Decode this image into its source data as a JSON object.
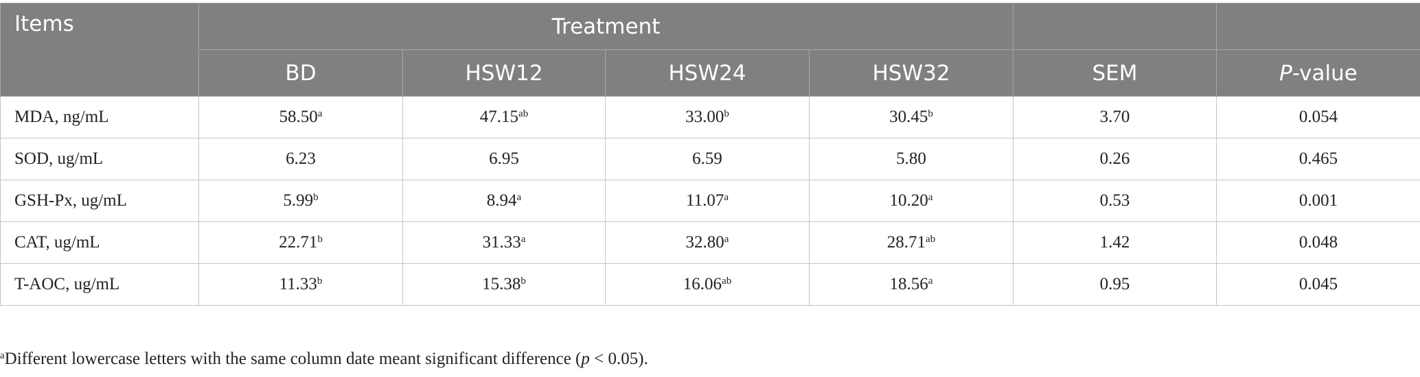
{
  "table": {
    "header": {
      "items": "Items",
      "treatment": "Treatment",
      "columns": [
        "BD",
        "HSW12",
        "HSW24",
        "HSW32"
      ],
      "sem": "SEM",
      "p_value": {
        "italic": "P",
        "text": "-value"
      }
    },
    "rows": [
      {
        "item": "MDA, ng/mL",
        "cells": [
          {
            "value": "58.50",
            "sup": "a"
          },
          {
            "value": "47.15",
            "sup": "ab"
          },
          {
            "value": "33.00",
            "sup": "b"
          },
          {
            "value": "30.45",
            "sup": "b"
          }
        ],
        "sem": "3.70",
        "p": "0.054"
      },
      {
        "item": "SOD, ug/mL",
        "cells": [
          {
            "value": "6.23"
          },
          {
            "value": "6.95"
          },
          {
            "value": "6.59"
          },
          {
            "value": "5.80"
          }
        ],
        "sem": "0.26",
        "p": "0.465"
      },
      {
        "item": "GSH-Px, ug/mL",
        "cells": [
          {
            "value": "5.99",
            "sup": "b"
          },
          {
            "value": "8.94",
            "sup": "a"
          },
          {
            "value": "11.07",
            "sup": "a"
          },
          {
            "value": "10.20",
            "sup": "a"
          }
        ],
        "sem": "0.53",
        "p": "0.001"
      },
      {
        "item": "CAT, ug/mL",
        "cells": [
          {
            "value": "22.71",
            "sup": "b"
          },
          {
            "value": "31.33",
            "sup": "a"
          },
          {
            "value": "32.80",
            "sup": "a"
          },
          {
            "value": "28.71",
            "sup": "ab"
          }
        ],
        "sem": "1.42",
        "p": "0.048"
      },
      {
        "item": "T-AOC, ug/mL",
        "cells": [
          {
            "value": "11.33",
            "sup": "b"
          },
          {
            "value": "15.38",
            "sup": "b"
          },
          {
            "value": "16.06",
            "sup": "ab"
          },
          {
            "value": "18.56",
            "sup": "a"
          }
        ],
        "sem": "0.95",
        "p": "0.045"
      }
    ]
  },
  "footnote": {
    "mark": "a",
    "text": "Different lowercase letters with the same column date meant significant difference (",
    "italic": "p",
    "end": " < 0.05)."
  }
}
